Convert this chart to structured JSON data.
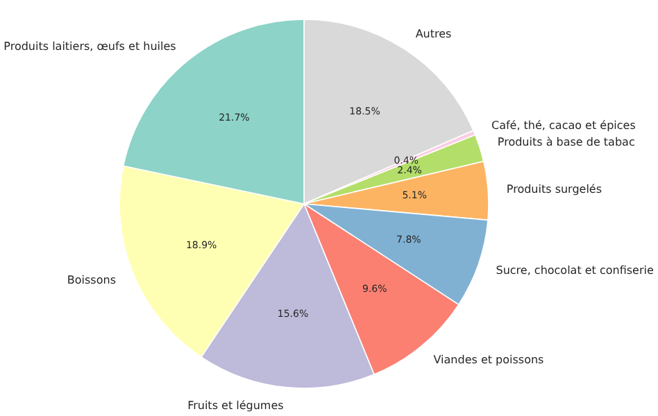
{
  "chart_data": {
    "type": "pie",
    "categories": [
      "Autres",
      "Café, thé, cacao et épices",
      "Produits à base de tabac",
      "Produits surgelés",
      "Sucre, chocolat et confiserie",
      "Viandes et poissons",
      "Fruits et légumes",
      "Boissons",
      "Produits laitiers, œufs et huiles"
    ],
    "values": [
      18.5,
      0.4,
      2.4,
      5.1,
      7.8,
      9.6,
      15.6,
      18.9,
      21.7
    ],
    "value_labels": [
      "18.5%",
      "0.4%",
      "2.4%",
      "5.1%",
      "7.8%",
      "9.6%",
      "15.6%",
      "18.9%",
      "21.7%"
    ],
    "colors": [
      "#d9d9d9",
      "#fccde5",
      "#b3de69",
      "#fdb462",
      "#80b1d3",
      "#fb8072",
      "#bebada",
      "#ffffb3",
      "#8dd3c7"
    ],
    "legend": false
  }
}
